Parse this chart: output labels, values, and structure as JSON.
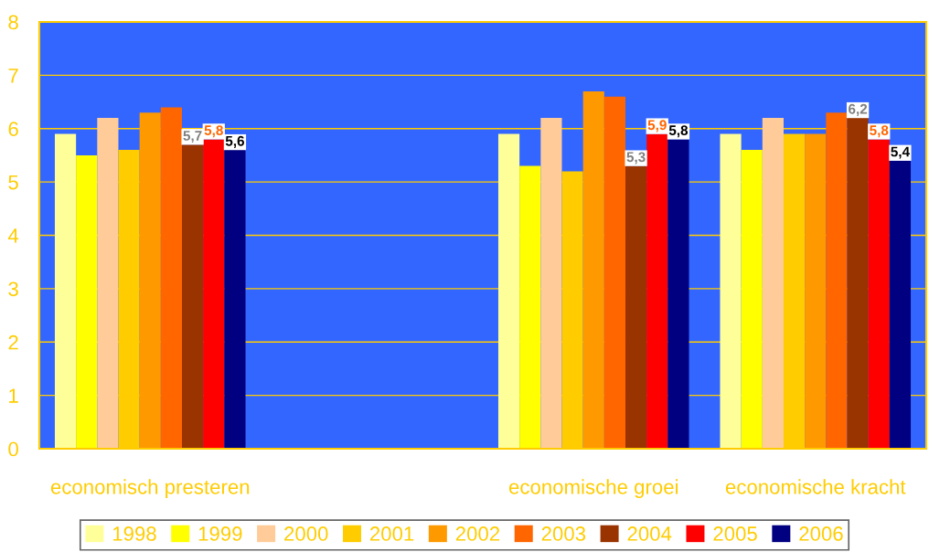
{
  "chart_data": {
    "type": "bar",
    "categories": [
      "economisch presteren",
      null,
      "economische groei",
      "economische kracht"
    ],
    "series": [
      {
        "name": "1998",
        "color": "#ffff99",
        "values": [
          5.9,
          null,
          5.9,
          5.9
        ]
      },
      {
        "name": "1999",
        "color": "#ffff00",
        "values": [
          5.5,
          null,
          5.3,
          5.6
        ]
      },
      {
        "name": "2000",
        "color": "#ffcc99",
        "values": [
          6.2,
          null,
          6.2,
          6.2
        ]
      },
      {
        "name": "2001",
        "color": "#ffcc00",
        "values": [
          5.6,
          null,
          5.2,
          5.9
        ]
      },
      {
        "name": "2002",
        "color": "#ff9900",
        "values": [
          6.3,
          null,
          6.7,
          5.9
        ]
      },
      {
        "name": "2003",
        "color": "#ff6600",
        "values": [
          6.4,
          null,
          6.6,
          6.3
        ]
      },
      {
        "name": "2004",
        "color": "#993300",
        "values": [
          5.7,
          null,
          5.3,
          6.2
        ],
        "value_labels": [
          "5,7",
          null,
          "5,3",
          "6,2"
        ]
      },
      {
        "name": "2005",
        "color": "#ff0000",
        "values": [
          5.8,
          null,
          5.9,
          5.8
        ],
        "value_labels": [
          "5,8",
          null,
          "5,9",
          "5,8"
        ]
      },
      {
        "name": "2006",
        "color": "#000080",
        "values": [
          5.6,
          null,
          5.8,
          5.4
        ],
        "value_labels": [
          "5,6",
          null,
          "5,8",
          "5,4"
        ]
      }
    ],
    "ylim": [
      0,
      8
    ],
    "yticks": [
      0,
      1,
      2,
      3,
      4,
      5,
      6,
      7,
      8
    ],
    "grid": "y",
    "legend": "bottom"
  }
}
